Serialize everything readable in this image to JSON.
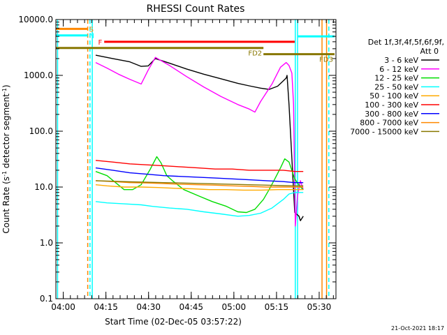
{
  "window": {
    "footer_timestamp": "21-Oct-2021 18:17"
  },
  "chart_data": {
    "type": "line",
    "title": "RHESSI Count Rates",
    "xlabel": "Start Time (02-Dec-05 03:57:22)",
    "ylabel": "Count Rate (s⁻¹ detector segment⁻¹)",
    "ylabel_parts": [
      "Count Rate (s",
      "-1",
      " detector segment",
      "-1",
      ")"
    ],
    "y_scale": "log",
    "ylim": [
      0.1,
      10000.0
    ],
    "xlim": [
      "03:57:22",
      "05:35:50"
    ],
    "x_unit": "minutes since 03:57:22",
    "x_range_minutes": [
      0,
      98.5
    ],
    "x_ticks": [
      {
        "label": "04:00",
        "value": 2.6
      },
      {
        "label": "04:15",
        "value": 17.6
      },
      {
        "label": "04:30",
        "value": 32.6
      },
      {
        "label": "04:45",
        "value": 47.6
      },
      {
        "label": "05:00",
        "value": 62.6
      },
      {
        "label": "05:15",
        "value": 77.6
      },
      {
        "label": "05:30",
        "value": 92.6
      }
    ],
    "y_ticks": [
      {
        "label": "0.1",
        "value": 0.1
      },
      {
        "label": "1.0",
        "value": 1.0
      },
      {
        "label": "10.0",
        "value": 10.0
      },
      {
        "label": "100.0",
        "value": 100.0
      },
      {
        "label": "1000.0",
        "value": 1000.0
      },
      {
        "label": "10000.0",
        "value": 10000.0
      }
    ],
    "legend": {
      "header": "Det 1f,3f,4f,5f,6f,9f,",
      "header2": "Att 0",
      "placement": "right"
    },
    "series": [
      {
        "name": "3 - 6 keV",
        "color": "#000000",
        "x": [
          14,
          20,
          26,
          30,
          32.5,
          35,
          40,
          46,
          52,
          58,
          64,
          68,
          72,
          75,
          78,
          80,
          81,
          81.3,
          82,
          84,
          85.5,
          86,
          87
        ],
        "values": [
          2300,
          2000,
          1750,
          1450,
          1480,
          2000,
          1650,
          1300,
          1050,
          870,
          720,
          650,
          590,
          560,
          640,
          800,
          900,
          1000,
          300,
          3.5,
          3,
          2.5,
          3
        ]
      },
      {
        "name": "6 - 12 keV",
        "color": "#ff00ff",
        "x": [
          14,
          18,
          22,
          26,
          30,
          32.5,
          35,
          40,
          46,
          52,
          58,
          64,
          68,
          70,
          72,
          76,
          79,
          81,
          82,
          83,
          83.6,
          84.2,
          85,
          86,
          87
        ],
        "values": [
          1700,
          1350,
          1050,
          850,
          700,
          1250,
          2100,
          1500,
          950,
          620,
          420,
          300,
          250,
          220,
          340,
          700,
          1400,
          1700,
          1500,
          1100,
          300,
          2,
          7,
          13,
          9
        ]
      },
      {
        "name": "12 - 25 keV",
        "color": "#00dd00",
        "x": [
          14,
          18,
          21,
          24,
          27,
          30,
          33,
          35.5,
          37,
          39,
          41,
          45,
          50,
          55,
          60,
          64,
          67,
          70,
          73,
          75,
          77,
          79,
          80.5,
          82,
          84,
          86,
          87
        ],
        "values": [
          19,
          16,
          12,
          9,
          9,
          11,
          20,
          35,
          27,
          16,
          13,
          9,
          7,
          5.5,
          4.5,
          3.6,
          3.5,
          4,
          6,
          9,
          14,
          22,
          32,
          28,
          14,
          10,
          9
        ]
      },
      {
        "name": "25 - 50 keV",
        "color": "#00ffff",
        "x": [
          14,
          18,
          24,
          30,
          34,
          40,
          46,
          52,
          58,
          64,
          68,
          72,
          76,
          80,
          82,
          84,
          86,
          87
        ],
        "values": [
          5.5,
          5.2,
          5,
          4.8,
          4.5,
          4.2,
          4,
          3.6,
          3.3,
          3,
          3.1,
          3.4,
          4.2,
          6,
          7.5,
          8,
          8,
          8
        ]
      },
      {
        "name": "50 - 100 keV",
        "color": "#ffaa00",
        "x": [
          14,
          18,
          24,
          30,
          36,
          42,
          48,
          54,
          60,
          66,
          72,
          78,
          82,
          86,
          87
        ],
        "values": [
          11,
          10.5,
          10,
          10,
          9.8,
          9.5,
          9.3,
          9,
          9,
          8.8,
          8.8,
          9,
          9,
          9,
          9
        ]
      },
      {
        "name": "100 - 300 keV",
        "color": "#ff0000",
        "x": [
          14,
          20,
          26,
          32,
          38,
          44,
          50,
          56,
          62,
          68,
          74,
          80,
          84,
          87
        ],
        "values": [
          30,
          28,
          26,
          25,
          24,
          23,
          22,
          21,
          21,
          20,
          20,
          20,
          19,
          19
        ]
      },
      {
        "name": "300 - 800 keV",
        "color": "#0000ff",
        "x": [
          14,
          20,
          26,
          32,
          38,
          44,
          50,
          56,
          62,
          68,
          74,
          80,
          84,
          87
        ],
        "values": [
          22,
          20,
          18,
          17,
          16,
          15.5,
          15,
          14.5,
          14,
          13.5,
          13,
          12.5,
          12,
          12
        ]
      },
      {
        "name": "800 - 7000 keV",
        "color": "#ff8800",
        "x": [
          14,
          20,
          26,
          32,
          38,
          44,
          50,
          56,
          62,
          68,
          74,
          80,
          84,
          87
        ],
        "values": [
          13,
          12.5,
          12,
          11.8,
          11.5,
          11.2,
          11,
          10.8,
          10.5,
          10.3,
          10,
          10,
          10,
          10
        ]
      },
      {
        "name": "7000 - 15000 keV",
        "color": "#887700",
        "x": [
          14,
          20,
          26,
          32,
          38,
          44,
          50,
          56,
          62,
          68,
          74,
          80,
          84,
          87
        ],
        "values": [
          13,
          12.7,
          12.4,
          12.2,
          12,
          11.8,
          11.6,
          11.4,
          11.2,
          11,
          10.8,
          10.6,
          10.5,
          10.5
        ]
      }
    ],
    "flag_bars": [
      {
        "label": "S",
        "color": "#ff8800",
        "x": [
          0,
          11.2
        ],
        "y": 6800
      },
      {
        "label": "N",
        "color": "#00ffff",
        "x": [
          0,
          11.2
        ],
        "y": 5200
      },
      {
        "label": "F",
        "color": "#ff0000",
        "x": [
          17,
          84
        ],
        "y": 4000
      },
      {
        "label": "FD2",
        "color": "#887700",
        "x": [
          0,
          73
        ],
        "y": 3100
      },
      {
        "label": "FD3",
        "color": "#887700",
        "x": [
          73,
          98
        ],
        "y": 2400
      },
      {
        "label": "",
        "color": "#00ffff",
        "x": [
          85,
          98
        ],
        "y": 5000
      }
    ],
    "vertical_markers": [
      {
        "x": 0.6,
        "color": "#00ffff",
        "style": "solid"
      },
      {
        "x": 11.2,
        "color": "#ff8800",
        "style": "dashed"
      },
      {
        "x": 12.0,
        "color": "#00ffff",
        "style": "dashed"
      },
      {
        "x": 12.8,
        "color": "#00ffff",
        "style": "solid"
      },
      {
        "x": 84.2,
        "color": "#00ffff",
        "style": "solid"
      },
      {
        "x": 85.0,
        "color": "#00ffff",
        "style": "solid"
      },
      {
        "x": 93.6,
        "color": "#ff8800",
        "style": "solid"
      },
      {
        "x": 95.2,
        "color": "#ff8800",
        "style": "solid"
      },
      {
        "x": 96.0,
        "color": "#00ffff",
        "style": "dashed"
      }
    ]
  }
}
